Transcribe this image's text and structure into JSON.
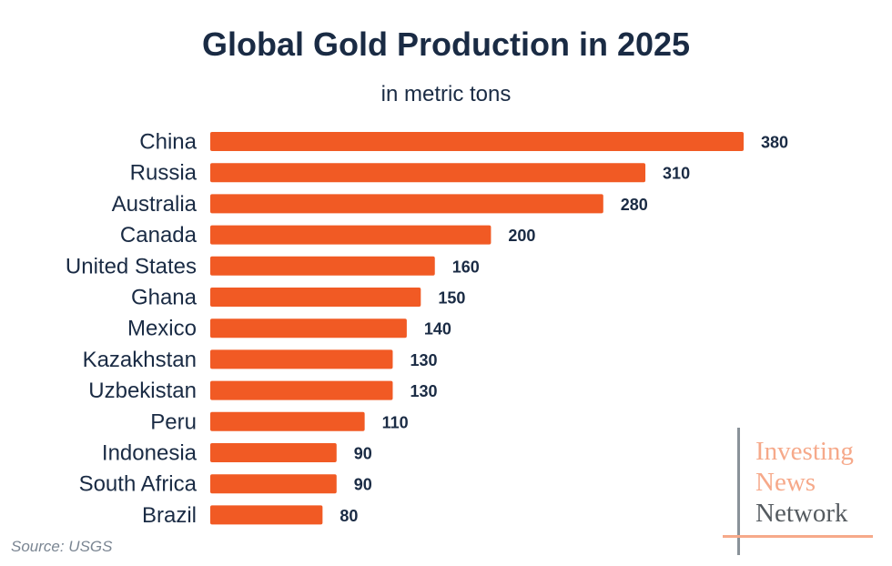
{
  "colors": {
    "bar": "#f15a24",
    "text": "#1a2b44",
    "logo_accent": "#f6a98a",
    "logo_dark": "#555b60",
    "source": "#7a8592"
  },
  "source": "Source: USGS",
  "logo": {
    "line1": "Investing",
    "line2": "News",
    "line3": "Network"
  },
  "chart_data": {
    "type": "bar",
    "orientation": "horizontal",
    "title": "Global Gold Production in 2025",
    "subtitle": "in metric tons",
    "categories": [
      "China",
      "Russia",
      "Australia",
      "Canada",
      "United States",
      "Ghana",
      "Mexico",
      "Kazakhstan",
      "Uzbekistan",
      "Peru",
      "Indonesia",
      "South Africa",
      "Brazil"
    ],
    "values": [
      380,
      310,
      280,
      200,
      160,
      150,
      140,
      130,
      130,
      110,
      90,
      90,
      80
    ],
    "xlim": [
      0,
      380
    ],
    "grid": false,
    "legend": "none"
  }
}
